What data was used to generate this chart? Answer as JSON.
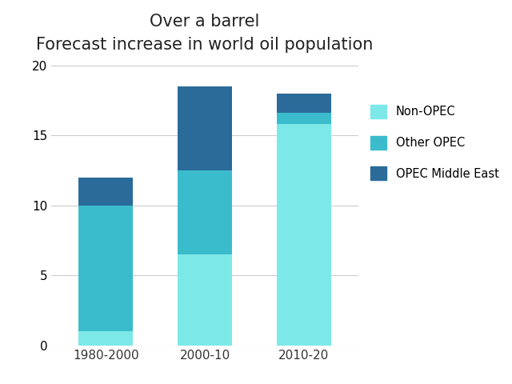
{
  "title_line1": "Over a barrel",
  "title_line2": "Forecast increase in world oil population",
  "categories": [
    "1980-2000",
    "2000-10",
    "2010-20"
  ],
  "non_opec": [
    1.0,
    6.5,
    15.8
  ],
  "other_opec": [
    9.0,
    6.0,
    0.8
  ],
  "opec_middle_east": [
    2.0,
    6.0,
    1.4
  ],
  "color_non_opec": "#7DE8E8",
  "color_other_opec": "#3BBCCC",
  "color_opec_middle_east": "#2A6B9A",
  "ylim": [
    0,
    20
  ],
  "yticks": [
    0,
    5,
    10,
    15,
    20
  ],
  "bar_width": 0.55,
  "background_color": "#FFFFFF",
  "legend_labels": [
    "Non-OPEC",
    "Other OPEC",
    "OPEC Middle East"
  ],
  "title_fontsize": 15,
  "subtitle_fontsize": 12
}
